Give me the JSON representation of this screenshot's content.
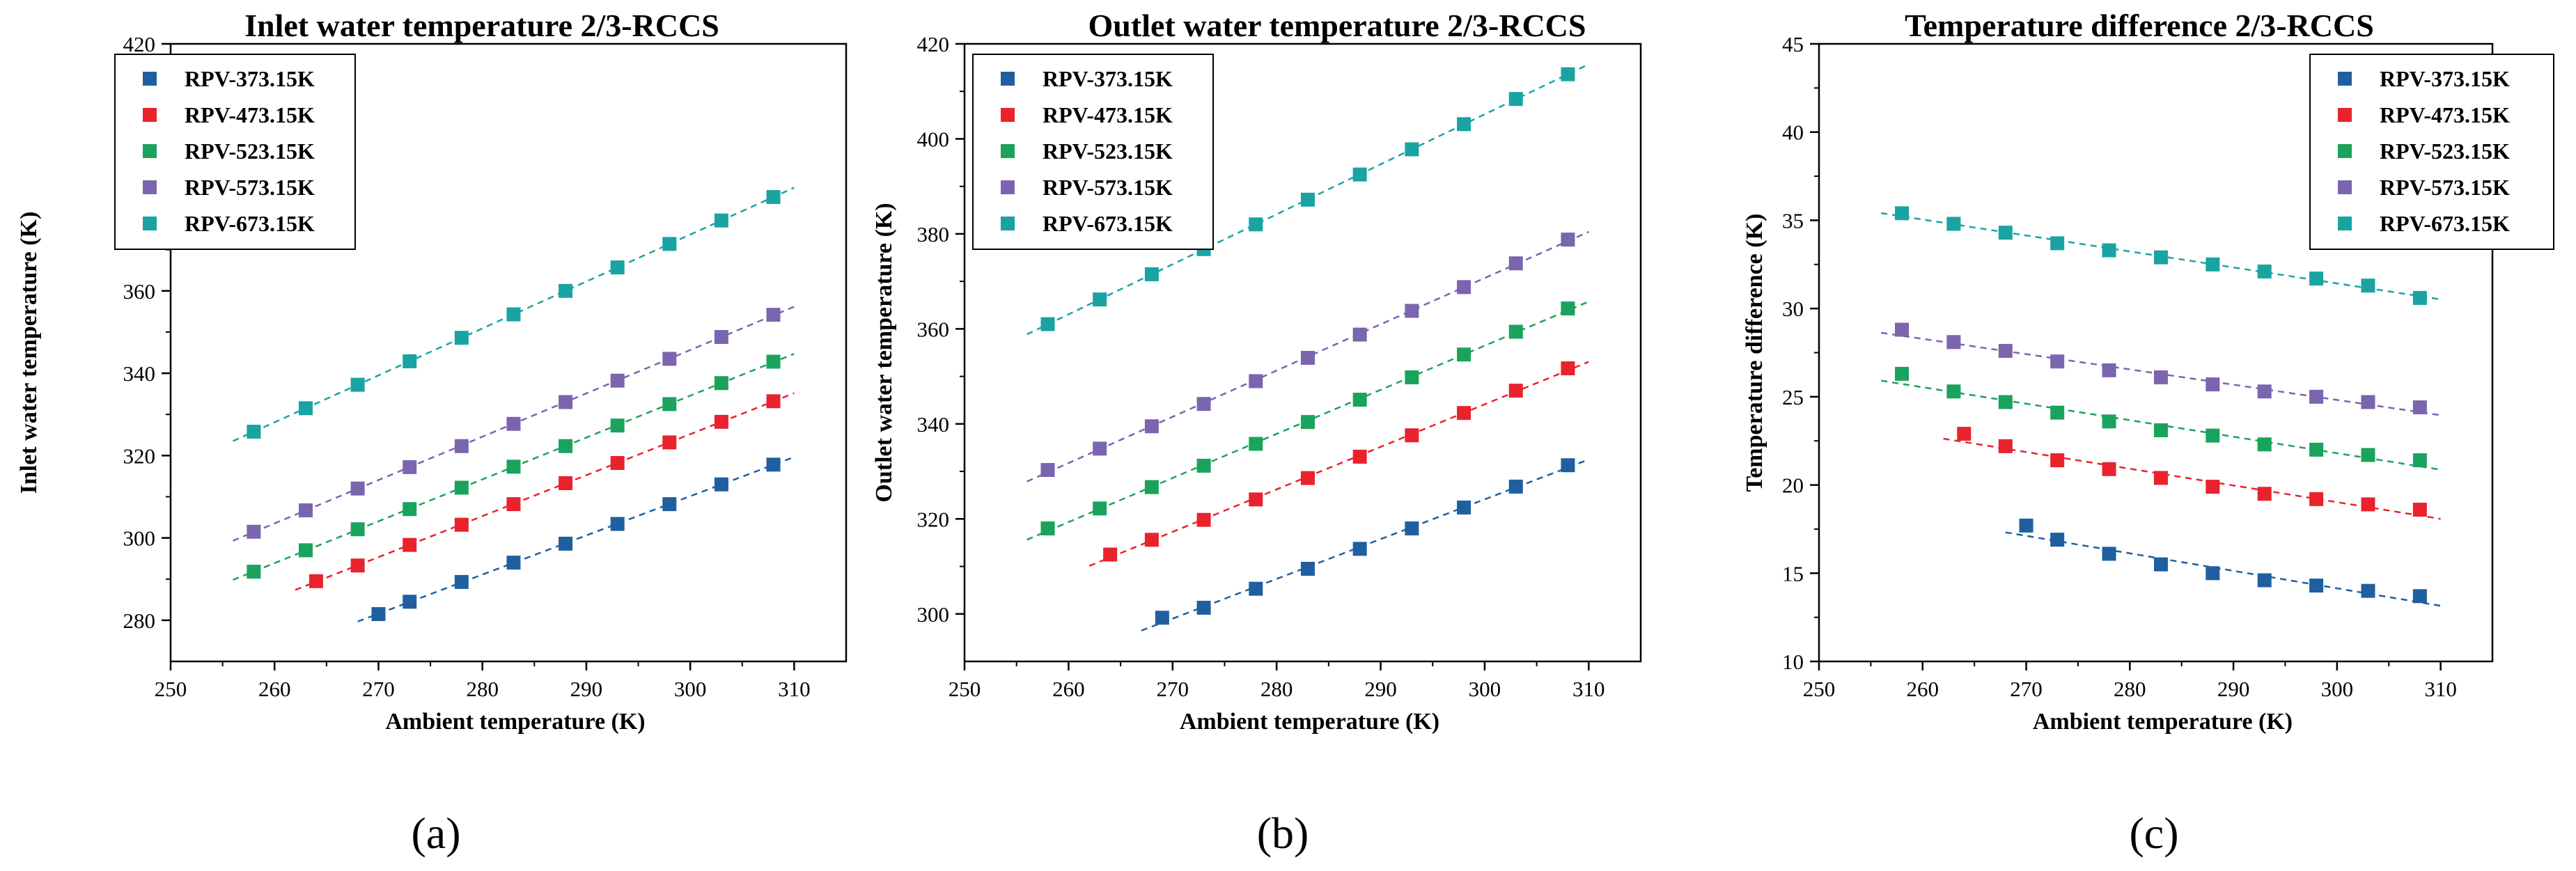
{
  "panels": [
    {
      "letter": "(a)",
      "chart_data": {
        "type": "scatter",
        "title": "Inlet water temperature 2/3-RCCS",
        "xlabel": "Ambient temperature (K)",
        "ylabel": "Inlet water temperature (K)",
        "xlim": [
          250,
          315
        ],
        "ylim": [
          270,
          420
        ],
        "xticks": [
          250,
          260,
          270,
          280,
          290,
          300,
          310
        ],
        "yticks": [
          280,
          300,
          320,
          340,
          360,
          380,
          400,
          420
        ],
        "legend_position": "top-left",
        "trendlines": "dashed linear fits",
        "series": [
          {
            "name": "RPV-373.15K",
            "color": "#1f5fa0",
            "x": [
              270,
              273,
              278,
              283,
              288,
              293,
              298,
              303,
              308
            ],
            "y": [
              281.5,
              284.5,
              289.3,
              294,
              298.6,
              303.4,
              308.2,
              313,
              317.8
            ],
            "fit_x": [
              268,
              310
            ]
          },
          {
            "name": "RPV-473.15K",
            "color": "#e8232d",
            "x": [
              264,
              268,
              273,
              278,
              283,
              288,
              293,
              298,
              303,
              308
            ],
            "y": [
              289.5,
              293.3,
              298.3,
              303.2,
              308.2,
              313.3,
              318.2,
              323.2,
              328.2,
              333.2
            ],
            "fit_x": [
              262,
              310
            ]
          },
          {
            "name": "RPV-523.15K",
            "color": "#1aa35c",
            "x": [
              258,
              263,
              268,
              273,
              278,
              283,
              288,
              293,
              298,
              303,
              308
            ],
            "y": [
              291.8,
              297,
              302.1,
              307,
              312.2,
              317.3,
              322.3,
              327.3,
              332.5,
              337.6,
              342.8
            ],
            "fit_x": [
              256,
              310
            ]
          },
          {
            "name": "RPV-573.15K",
            "color": "#7b65ae",
            "x": [
              258,
              263,
              268,
              273,
              278,
              283,
              288,
              293,
              298,
              303,
              308
            ],
            "y": [
              301.5,
              306.7,
              312,
              317.2,
              322.3,
              327.7,
              333,
              338.2,
              343.5,
              348.8,
              354.2
            ],
            "fit_x": [
              256,
              310
            ]
          },
          {
            "name": "RPV-673.15K",
            "color": "#1aa3a3",
            "x": [
              258,
              263,
              268,
              273,
              278,
              283,
              288,
              293,
              298,
              303,
              308
            ],
            "y": [
              325.8,
              331.5,
              337.2,
              342.9,
              348.6,
              354.3,
              360,
              365.7,
              371.4,
              377.1,
              382.8
            ],
            "fit_x": [
              256,
              310
            ]
          }
        ]
      }
    },
    {
      "letter": "(b)",
      "chart_data": {
        "type": "scatter",
        "title": "Outlet water temperature 2/3-RCCS",
        "xlabel": "Ambient temperature (K)",
        "ylabel": "Outlet water temperature (K)",
        "xlim": [
          250,
          315
        ],
        "ylim": [
          290,
          420
        ],
        "xticks": [
          250,
          260,
          270,
          280,
          290,
          300,
          310
        ],
        "yticks": [
          300,
          320,
          340,
          360,
          380,
          400,
          420
        ],
        "legend_position": "top-left",
        "trendlines": "dashed linear fits",
        "series": [
          {
            "name": "RPV-373.15K",
            "color": "#1f5fa0",
            "x": [
              269,
              273,
              278,
              283,
              288,
              293,
              298,
              303,
              308
            ],
            "y": [
              299.2,
              301.3,
              305.3,
              309.5,
              313.7,
              318,
              322.4,
              326.8,
              331.3
            ],
            "fit_x": [
              267,
              310
            ]
          },
          {
            "name": "RPV-473.15K",
            "color": "#e8232d",
            "x": [
              264,
              268,
              273,
              278,
              283,
              288,
              293,
              298,
              303,
              308
            ],
            "y": [
              312.5,
              315.6,
              319.8,
              324.1,
              328.6,
              333.1,
              337.6,
              342.3,
              347,
              351.7
            ],
            "fit_x": [
              262,
              310
            ]
          },
          {
            "name": "RPV-523.15K",
            "color": "#1aa35c",
            "x": [
              258,
              263,
              268,
              273,
              278,
              283,
              288,
              293,
              298,
              303,
              308
            ],
            "y": [
              318,
              322.2,
              326.7,
              331.2,
              335.8,
              340.4,
              345.1,
              349.8,
              354.6,
              359.4,
              364.3
            ],
            "fit_x": [
              256,
              310
            ]
          },
          {
            "name": "RPV-573.15K",
            "color": "#7b65ae",
            "x": [
              258,
              263,
              268,
              273,
              278,
              283,
              288,
              293,
              298,
              303,
              308
            ],
            "y": [
              330.3,
              334.8,
              339.5,
              344.2,
              349,
              353.9,
              358.8,
              363.8,
              368.8,
              373.8,
              378.8
            ],
            "fit_x": [
              256,
              310
            ]
          },
          {
            "name": "RPV-673.15K",
            "color": "#1aa3a3",
            "x": [
              258,
              263,
              268,
              273,
              278,
              283,
              288,
              293,
              298,
              303,
              308
            ],
            "y": [
              361,
              366.2,
              371.5,
              376.8,
              382,
              387.2,
              392.5,
              397.8,
              403.1,
              408.4,
              413.6
            ],
            "fit_x": [
              256,
              310
            ]
          }
        ]
      }
    },
    {
      "letter": "(c)",
      "chart_data": {
        "type": "scatter",
        "title": "Temperature difference 2/3-RCCS",
        "xlabel": "Ambient temperature (K)",
        "ylabel": "Temperature difference (K)",
        "xlim": [
          250,
          315
        ],
        "ylim": [
          10,
          45
        ],
        "xticks": [
          250,
          260,
          270,
          280,
          290,
          300,
          310
        ],
        "yticks": [
          10,
          15,
          20,
          25,
          30,
          35,
          40,
          45
        ],
        "legend_position": "top-right",
        "trendlines": "dashed linear fits",
        "series": [
          {
            "name": "RPV-373.15K",
            "color": "#1f5fa0",
            "x": [
              270,
              273,
              278,
              283,
              288,
              293,
              298,
              303,
              308
            ],
            "y": [
              17.7,
              16.9,
              16.1,
              15.5,
              15,
              14.6,
              14.3,
              14,
              13.7
            ],
            "fit_x": [
              268,
              310
            ]
          },
          {
            "name": "RPV-473.15K",
            "color": "#e8232d",
            "x": [
              264,
              268,
              273,
              278,
              283,
              288,
              293,
              298,
              303,
              308
            ],
            "y": [
              22.9,
              22.2,
              21.4,
              20.9,
              20.4,
              19.9,
              19.5,
              19.2,
              18.9,
              18.6
            ],
            "fit_x": [
              262,
              310
            ]
          },
          {
            "name": "RPV-523.15K",
            "color": "#1aa35c",
            "x": [
              258,
              263,
              268,
              273,
              278,
              283,
              288,
              293,
              298,
              303,
              308
            ],
            "y": [
              26.3,
              25.3,
              24.7,
              24.1,
              23.6,
              23.1,
              22.8,
              22.3,
              22,
              21.7,
              21.4
            ],
            "fit_x": [
              256,
              310
            ]
          },
          {
            "name": "RPV-573.15K",
            "color": "#7b65ae",
            "x": [
              258,
              263,
              268,
              273,
              278,
              283,
              288,
              293,
              298,
              303,
              308
            ],
            "y": [
              28.8,
              28.1,
              27.6,
              27,
              26.5,
              26.1,
              25.7,
              25.3,
              25,
              24.7,
              24.4
            ],
            "fit_x": [
              256,
              310
            ]
          },
          {
            "name": "RPV-673.15K",
            "color": "#1aa3a3",
            "x": [
              258,
              263,
              268,
              273,
              278,
              283,
              288,
              293,
              298,
              303,
              308
            ],
            "y": [
              35.4,
              34.8,
              34.3,
              33.7,
              33.3,
              32.9,
              32.5,
              32.1,
              31.7,
              31.3,
              30.6
            ],
            "fit_x": [
              256,
              310
            ]
          }
        ]
      }
    }
  ]
}
